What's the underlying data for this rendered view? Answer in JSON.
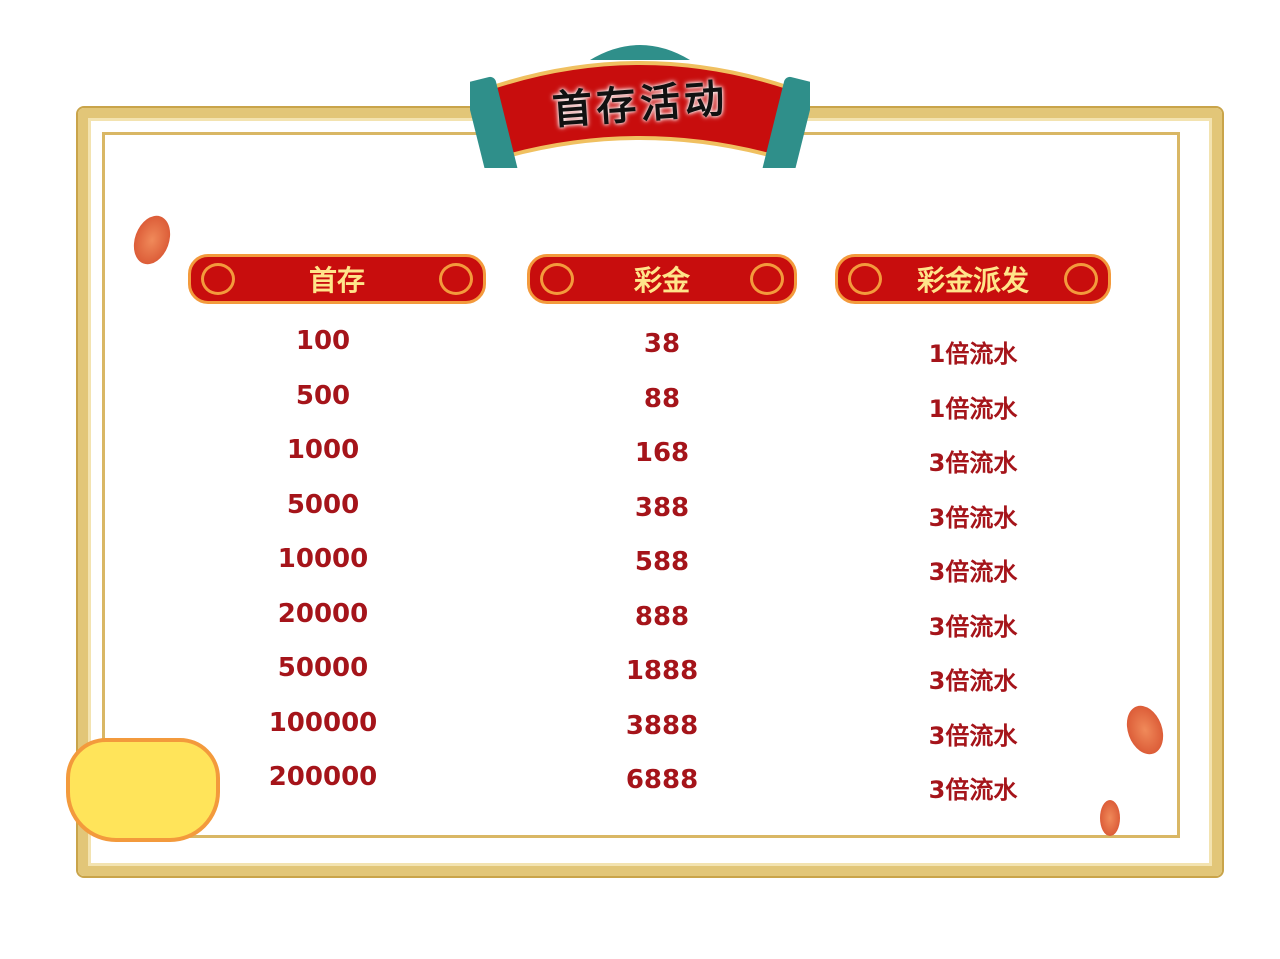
{
  "title": "首存活动",
  "headers": {
    "deposit": "首存",
    "bonus": "彩金",
    "payout": "彩金派发"
  },
  "rows": [
    {
      "deposit": "100",
      "bonus": "38",
      "payout": "1倍流水"
    },
    {
      "deposit": "500",
      "bonus": "88",
      "payout": "1倍流水"
    },
    {
      "deposit": "1000",
      "bonus": "168",
      "payout": "3倍流水"
    },
    {
      "deposit": "5000",
      "bonus": "388",
      "payout": "3倍流水"
    },
    {
      "deposit": "10000",
      "bonus": "588",
      "payout": "3倍流水"
    },
    {
      "deposit": "20000",
      "bonus": "888",
      "payout": "3倍流水"
    },
    {
      "deposit": "50000",
      "bonus": "1888",
      "payout": "3倍流水"
    },
    {
      "deposit": "100000",
      "bonus": "3888",
      "payout": "3倍流水"
    },
    {
      "deposit": "200000",
      "bonus": "6888",
      "payout": "3倍流水"
    }
  ],
  "colors": {
    "header_bg": "#c80d0d",
    "header_text": "#ffe58a",
    "cell_text": "#a5141a",
    "frame_gold": "#e2c678"
  },
  "decorations": [
    "gold-frame",
    "scroll-banner",
    "koi-fish",
    "gold-ingot",
    "coin-sparkles"
  ]
}
